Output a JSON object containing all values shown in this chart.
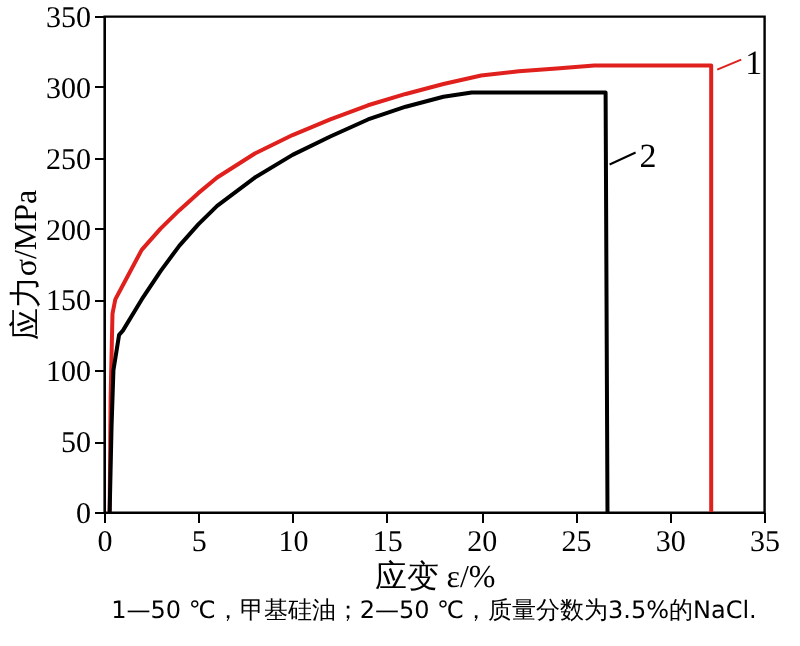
{
  "chart_data": {
    "type": "line",
    "xlabel": "应变 ε/%",
    "ylabel": "应力σ/MPa",
    "xlim": [
      0,
      35
    ],
    "xticks": [
      0,
      5,
      10,
      15,
      20,
      25,
      30,
      35
    ],
    "ylim": [
      0,
      350
    ],
    "yticks": [
      0,
      50,
      100,
      150,
      200,
      250,
      300,
      350
    ],
    "grid": false,
    "legend": "top right",
    "marker": "none",
    "line_style": "solid",
    "annotations": [
      "1—50 ℃，甲基硅油；2—50 ℃，质量分数为3.5%的NaCl."
    ],
    "series": [
      {
        "name": "1",
        "color": "#e0201c",
        "x": [
          0.3,
          0.35,
          0.45,
          0.6,
          1,
          2,
          3,
          4,
          5,
          6,
          8,
          10,
          12,
          14,
          16,
          18,
          20,
          22,
          24,
          26,
          28,
          30,
          32.2,
          32.2
        ],
        "values": [
          0,
          80,
          140,
          150,
          160,
          185,
          200,
          213,
          225,
          236,
          253,
          266,
          277,
          287,
          295,
          302,
          308,
          311,
          313,
          315,
          315,
          315,
          315,
          0
        ]
      },
      {
        "name": "2",
        "color": "#000000",
        "x": [
          0.3,
          0.4,
          0.5,
          0.8,
          1,
          2,
          3,
          4,
          5,
          6,
          8,
          10,
          12,
          14,
          16,
          18,
          19.5,
          22,
          24,
          26.6,
          26.7
        ],
        "values": [
          0,
          60,
          100,
          125,
          128,
          150,
          170,
          188,
          203,
          216,
          236,
          252,
          265,
          277,
          286,
          293,
          296,
          296,
          296,
          296,
          0
        ]
      }
    ]
  }
}
